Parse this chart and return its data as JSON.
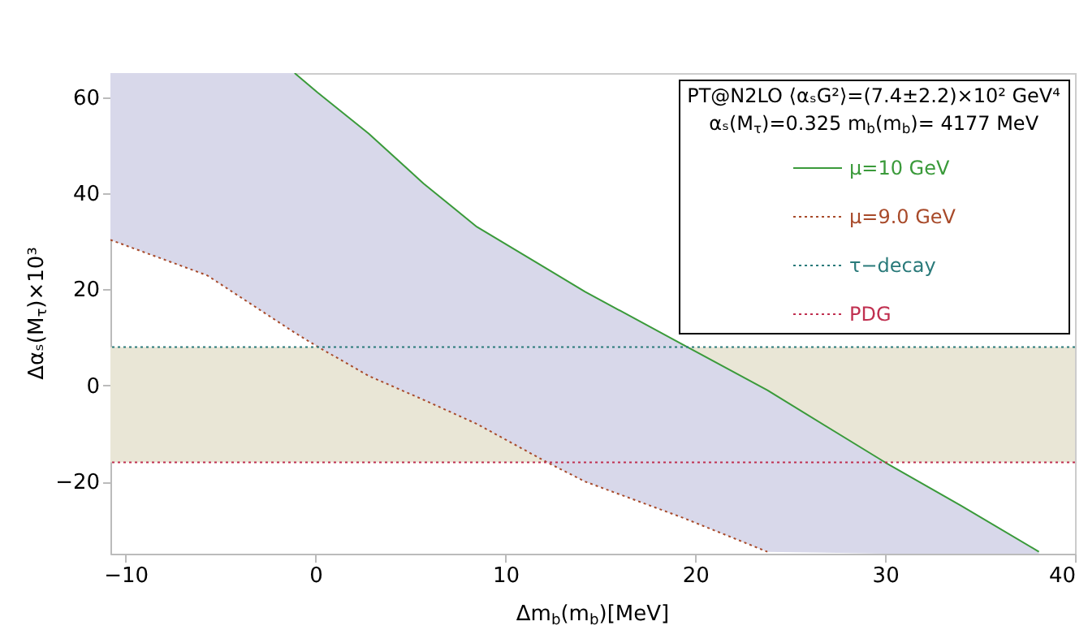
{
  "chart_data": {
    "type": "line",
    "xlabel": "Δm$_{b}$(m$_{b}$)[MeV]",
    "ylabel": "Δαₛ(M$_{τ}$)×10³",
    "legend_title": "PT@N2LO ⟨αₛG²⟩=(7.4±2.2)×10² GeV⁴",
    "annotations": [
      "αₛ(M$_{τ}$)=0.325  m$_{b}$(m$_{b}$)= 4177 MeV"
    ],
    "x": [
      -10.8,
      -5.7,
      -1.1,
      0.1,
      2.8,
      5.7,
      8.5,
      12.3,
      14.2,
      19.4,
      23.8,
      30,
      34,
      38.1
    ],
    "series": [
      {
        "name": "μ=10 GeV",
        "color": "#3a9a3a",
        "line_style": "solid",
        "values": [
          null,
          null,
          65,
          61,
          52.4,
          42,
          33,
          24,
          19.5,
          8.4,
          -1,
          -16,
          -25,
          -34.6
        ],
        "upper": [
          65,
          65,
          65,
          61,
          52.4,
          42,
          33,
          24,
          19.5,
          8.4,
          -1,
          -16,
          -25,
          -34.6
        ],
        "lower": [
          30.3,
          22.9,
          11,
          8.1,
          2,
          -3,
          -8,
          -16.2,
          -20,
          -27.6,
          -34.6,
          -35,
          -35,
          -35
        ]
      },
      {
        "name": "μ=9.0 GeV",
        "color": "#a84a2a",
        "line_style": "dotted",
        "values": [
          30.3,
          22.9,
          11,
          8.1,
          2,
          -3,
          -8,
          -16.2,
          -20,
          -27.6,
          -34.6,
          null,
          null,
          null
        ]
      }
    ],
    "ref_lines": [
      {
        "axis": "y",
        "value": 8,
        "label": "τ−decay",
        "color": "#2a7a7a",
        "line_style": "dotted"
      },
      {
        "axis": "y",
        "value": -16,
        "label": "PDG",
        "color": "#c03050",
        "line_style": "dotted"
      }
    ],
    "bands": [
      {
        "axis": "y",
        "from": -16,
        "to": 8,
        "color": "#e9e6d6"
      }
    ],
    "xlim": [
      -10.8,
      40
    ],
    "xticks": [
      -10,
      0,
      10,
      20,
      30,
      40
    ],
    "ylim": [
      -35,
      65
    ],
    "yticks": [
      -20,
      0,
      20,
      40,
      60
    ],
    "grid": false,
    "legend": "top right"
  }
}
